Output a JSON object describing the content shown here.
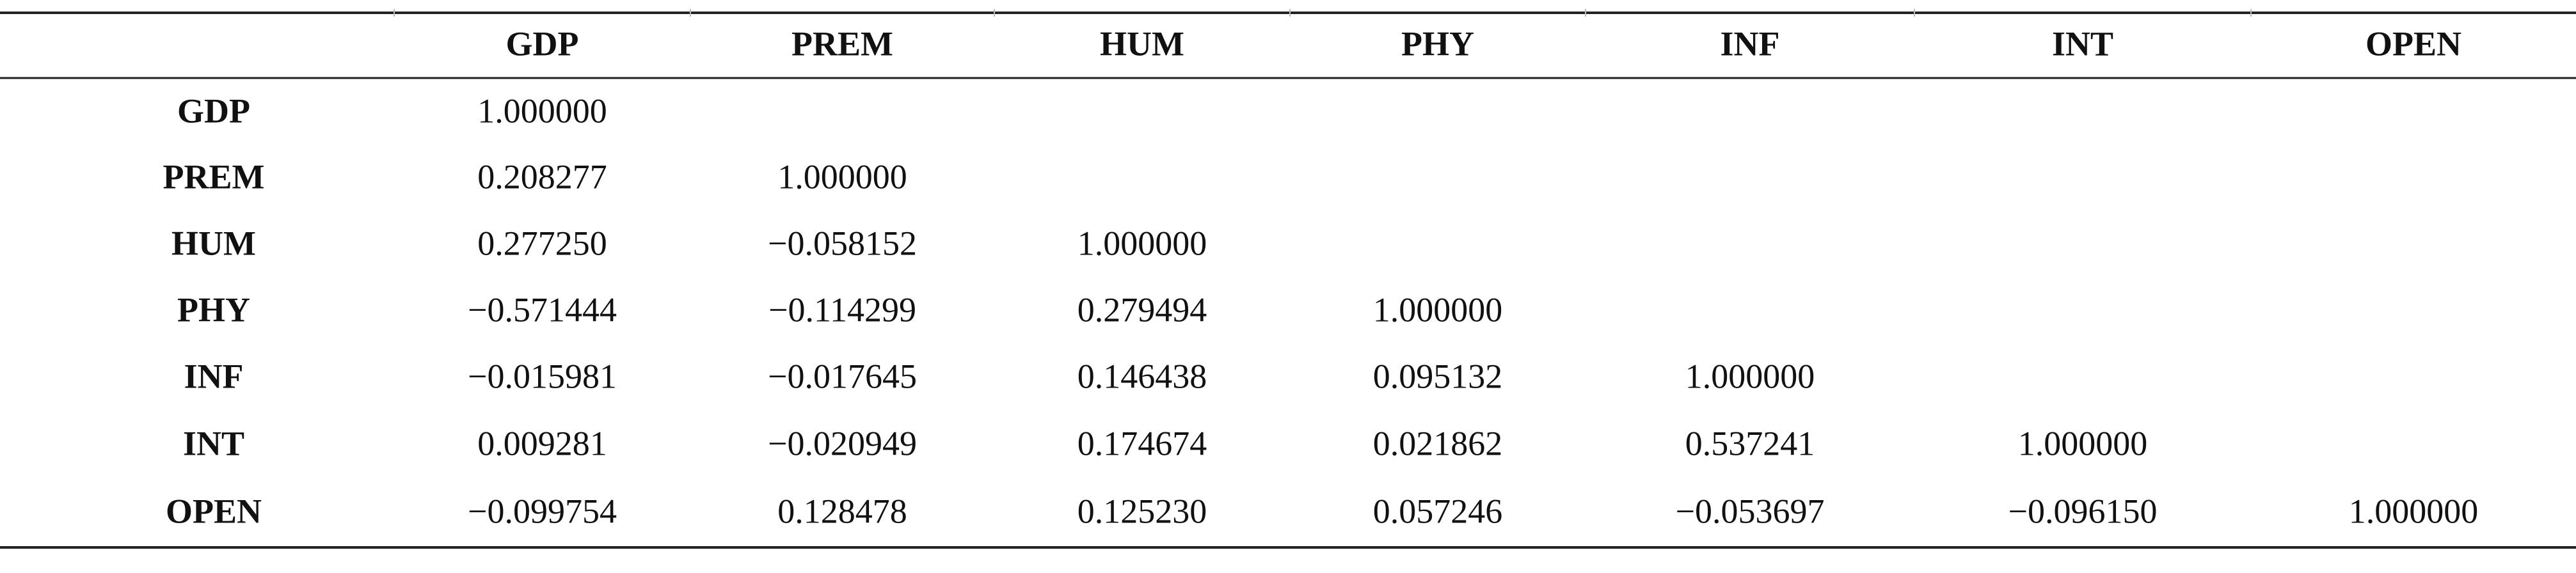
{
  "table": {
    "columns": [
      "GDP",
      "PREM",
      "HUM",
      "PHY",
      "INF",
      "INT",
      "OPEN"
    ],
    "rows": [
      {
        "label": "GDP",
        "values": [
          "1.000000"
        ]
      },
      {
        "label": "PREM",
        "values": [
          "0.208277",
          "1.000000"
        ]
      },
      {
        "label": "HUM",
        "values": [
          "0.277250",
          "−0.058152",
          "1.000000"
        ]
      },
      {
        "label": "PHY",
        "values": [
          "−0.571444",
          "−0.114299",
          "0.279494",
          "1.000000"
        ]
      },
      {
        "label": "INF",
        "values": [
          "−0.015981",
          "−0.017645",
          "0.146438",
          "0.095132",
          "1.000000"
        ]
      },
      {
        "label": "INT",
        "values": [
          "0.009281",
          "−0.020949",
          "0.174674",
          "0.021862",
          "0.537241",
          "1.000000"
        ]
      },
      {
        "label": "OPEN",
        "values": [
          "−0.099754",
          "0.128478",
          "0.125230",
          "0.057246",
          "−0.053697",
          "−0.096150",
          "1.000000"
        ]
      }
    ]
  }
}
